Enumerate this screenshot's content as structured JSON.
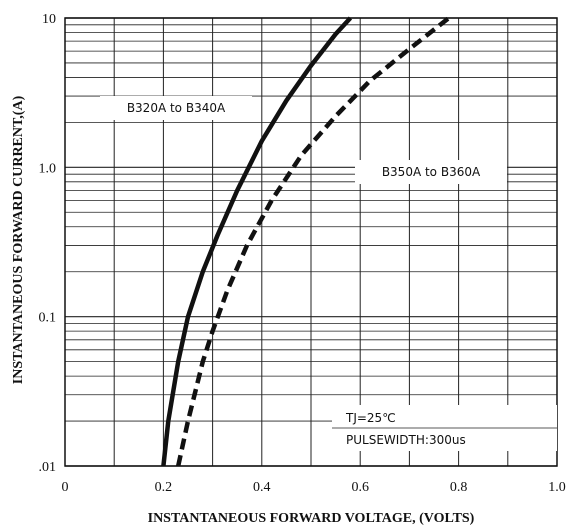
{
  "chart_data": {
    "type": "line",
    "xlabel": "INSTANTANEOUS FORWARD VOLTAGE, (VOLTS)",
    "ylabel": "INSTANTANEOUS FORWARD CURRENT,(A)",
    "xlim": [
      0,
      1.0
    ],
    "ylim": [
      0.01,
      10
    ],
    "yscale": "log",
    "grid": true,
    "x_ticks": [
      "0",
      "0.2",
      "0.4",
      "0.6",
      "0.8",
      "1.0"
    ],
    "y_ticks": [
      "10",
      "1.0",
      "0.1",
      ".01"
    ],
    "series": [
      {
        "name": "B320A to B340A",
        "style": "solid",
        "color": "#111111",
        "x": [
          0.2,
          0.21,
          0.23,
          0.25,
          0.28,
          0.31,
          0.35,
          0.4,
          0.45,
          0.5,
          0.55,
          0.58
        ],
        "y": [
          0.01,
          0.02,
          0.05,
          0.1,
          0.2,
          0.35,
          0.7,
          1.5,
          2.8,
          4.8,
          7.8,
          10.0
        ]
      },
      {
        "name": "B350A to B360A",
        "style": "dashed",
        "color": "#111111",
        "x": [
          0.23,
          0.25,
          0.28,
          0.3,
          0.33,
          0.37,
          0.42,
          0.48,
          0.55,
          0.62,
          0.7,
          0.78
        ],
        "y": [
          0.01,
          0.02,
          0.05,
          0.08,
          0.15,
          0.3,
          0.6,
          1.2,
          2.2,
          3.8,
          6.2,
          10.0
        ]
      }
    ],
    "annotations": [
      "TJ=25℃",
      "PULSEWIDTH:300us"
    ]
  }
}
